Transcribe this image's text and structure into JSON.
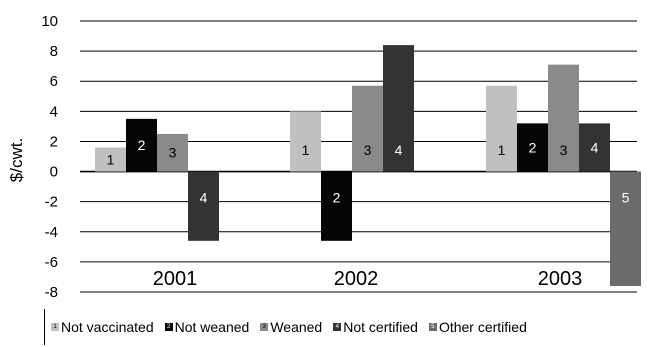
{
  "chart_data": {
    "type": "bar",
    "ylabel": "$/cwt.",
    "ylim": [
      -8,
      10
    ],
    "yticks": [
      "10",
      "8",
      "6",
      "4",
      "2",
      "0",
      "-2",
      "-4",
      "-6",
      "-8"
    ],
    "grid": "horizontal",
    "legend_placement": "bottom",
    "categories": [
      "2001",
      "2002",
      "2003"
    ],
    "series": [
      {
        "name": "Not vaccinated",
        "number": "1",
        "color": "#c0c0c0",
        "label_color": "#000000",
        "values": [
          1.6,
          4.0,
          5.7
        ]
      },
      {
        "name": "Not weaned",
        "number": "2",
        "color": "#050505",
        "label_color": "#ffffff",
        "values": [
          3.5,
          -4.6,
          3.2
        ]
      },
      {
        "name": "Weaned",
        "number": "3",
        "color": "#8a8a8a",
        "label_color": "#000000",
        "values": [
          2.5,
          5.7,
          7.1
        ]
      },
      {
        "name": "Not certified",
        "number": "4",
        "color": "#333333",
        "label_color": "#ffffff",
        "values": [
          -4.6,
          8.4,
          3.2
        ]
      },
      {
        "name": "Other certified",
        "number": "5",
        "color": "#6b6b6b",
        "label_color": "#ffffff",
        "values": [
          null,
          null,
          -7.6
        ]
      }
    ]
  }
}
